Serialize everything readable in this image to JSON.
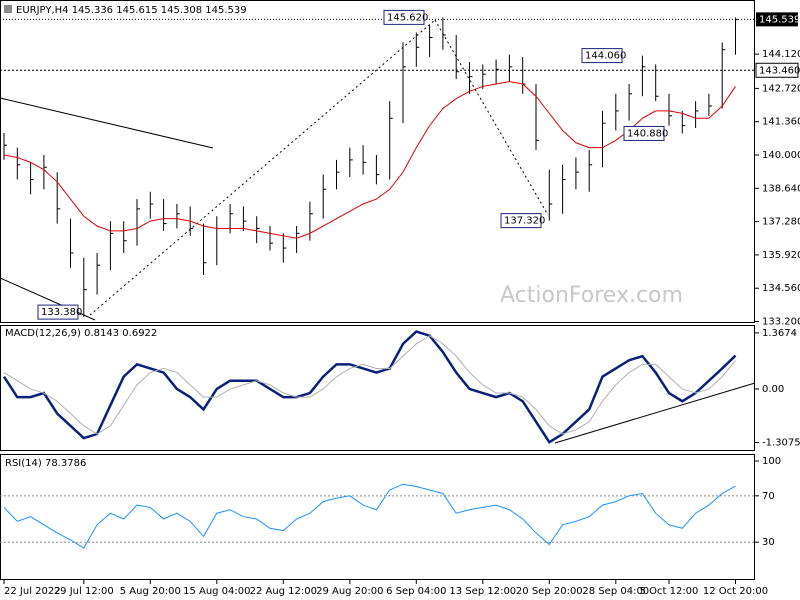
{
  "header": "EURJPY,H4  145.336 145.615 145.308 145.539",
  "watermark": "ActionForex.com",
  "chart_data": [
    {
      "type": "ohlc",
      "categories": [
        "22 Jul 2022",
        null,
        null,
        null,
        null,
        null,
        "29 Jul 12:00",
        null,
        null,
        null,
        null,
        "5 Aug 20:00",
        null,
        null,
        null,
        null,
        "15 Aug 04:00",
        null,
        null,
        null,
        null,
        "22 Aug 12:00",
        null,
        null,
        null,
        null,
        "29 Aug 20:00",
        null,
        null,
        null,
        null,
        "6 Sep 04:00",
        null,
        null,
        null,
        null,
        "13 Sep 12:00",
        null,
        null,
        null,
        null,
        "20 Sep 20:00",
        null,
        null,
        null,
        null,
        "28 Sep 04:00",
        null,
        null,
        null,
        "5 Oct 12:00",
        null,
        null,
        null,
        null,
        "12 Oct 20:00"
      ],
      "high": [
        140.9,
        140.3,
        139.7,
        140.0,
        139.3,
        137.4,
        135.8,
        136.0,
        137.3,
        137.3,
        138.2,
        138.5,
        138.2,
        138.0,
        137.9,
        137.2,
        137.5,
        138.0,
        137.9,
        137.5,
        137.1,
        136.8,
        137.1,
        138.1,
        139.2,
        139.8,
        140.3,
        140.4,
        140.0,
        142.2,
        144.6,
        145.0,
        145.3,
        145.62,
        144.9,
        143.8,
        143.7,
        143.9,
        144.1,
        144.0,
        142.9,
        139.4,
        139.6,
        139.9,
        140.2,
        141.8,
        142.5,
        142.9,
        144.06,
        143.7,
        142.5,
        141.8,
        142.2,
        142.5,
        144.6,
        145.615
      ],
      "low": [
        139.8,
        139.0,
        138.4,
        138.6,
        137.2,
        135.4,
        133.38,
        134.3,
        135.3,
        136.0,
        136.3,
        137.4,
        136.9,
        137.0,
        136.7,
        135.1,
        135.5,
        136.8,
        136.9,
        136.4,
        136.1,
        135.6,
        136.0,
        136.5,
        137.4,
        138.6,
        139.1,
        139.2,
        138.8,
        139.0,
        141.3,
        143.6,
        144.0,
        144.3,
        143.1,
        142.5,
        142.7,
        142.9,
        143.0,
        142.5,
        140.2,
        137.32,
        137.6,
        138.6,
        138.5,
        139.5,
        141.0,
        141.4,
        142.4,
        142.2,
        141.2,
        140.88,
        141.1,
        141.6,
        141.9,
        144.1
      ],
      "close": [
        140.4,
        139.6,
        139.0,
        139.5,
        137.8,
        136.0,
        134.5,
        135.5,
        136.8,
        136.5,
        137.8,
        138.0,
        137.2,
        137.6,
        137.0,
        135.6,
        137.0,
        137.6,
        137.3,
        137.0,
        136.4,
        136.2,
        136.8,
        137.6,
        138.6,
        139.3,
        139.8,
        139.7,
        139.2,
        141.5,
        143.6,
        144.4,
        144.8,
        144.9,
        143.4,
        143.2,
        143.3,
        143.5,
        143.6,
        142.9,
        140.6,
        138.0,
        139.0,
        139.3,
        139.6,
        141.3,
        141.8,
        142.5,
        143.6,
        142.4,
        141.6,
        141.2,
        141.8,
        142.0,
        144.3,
        145.539
      ],
      "bar_color": "#000000",
      "ma": {
        "color": "#e00000",
        "values": [
          140.0,
          139.9,
          139.7,
          139.4,
          138.9,
          138.2,
          137.5,
          137.1,
          136.9,
          136.9,
          137.0,
          137.3,
          137.4,
          137.4,
          137.3,
          137.1,
          137.0,
          137.0,
          137.0,
          136.9,
          136.8,
          136.7,
          136.6,
          136.8,
          137.1,
          137.4,
          137.7,
          138.0,
          138.2,
          138.6,
          139.3,
          140.3,
          141.2,
          141.9,
          142.3,
          142.6,
          142.8,
          142.9,
          143.0,
          142.9,
          142.4,
          141.7,
          141.0,
          140.5,
          140.3,
          140.3,
          140.6,
          141.0,
          141.5,
          141.8,
          141.8,
          141.7,
          141.5,
          141.5,
          142.0,
          142.8
        ]
      },
      "ylim": [
        133.18,
        146.33
      ],
      "yticks": [
        {
          "value": 133.2,
          "label": "133.200"
        },
        {
          "value": 134.56,
          "label": "134.560"
        },
        {
          "value": 135.92,
          "label": "135.920"
        },
        {
          "value": 137.28,
          "label": "137.280"
        },
        {
          "value": 138.64,
          "label": "138.640"
        },
        {
          "value": 140.0,
          "label": "140.000"
        },
        {
          "value": 141.36,
          "label": "141.360"
        },
        {
          "value": 142.72,
          "label": "142.720"
        },
        {
          "value": 144.12,
          "label": "144.120"
        }
      ],
      "current_price": {
        "value": 145.539,
        "label": "145.539"
      },
      "level": {
        "value": 143.46,
        "label": "143.460"
      },
      "annotations": [
        {
          "value": 145.62,
          "label": "145.620"
        },
        {
          "value": 144.06,
          "label": "144.060"
        },
        {
          "value": 140.88,
          "label": "140.880"
        },
        {
          "value": 137.32,
          "label": "137.320"
        },
        {
          "value": 133.38,
          "label": "133.380"
        }
      ]
    },
    {
      "type": "macd",
      "title": "MACD(12,26,9) 0.8143 0.6922",
      "series": [
        {
          "name": "MACD",
          "color": "#0a1f7a",
          "values": [
            0.3,
            -0.2,
            -0.2,
            -0.1,
            -0.6,
            -0.9,
            -1.2,
            -1.1,
            -0.4,
            0.3,
            0.6,
            0.5,
            0.4,
            0.0,
            -0.2,
            -0.5,
            0.0,
            0.2,
            0.2,
            0.2,
            0.0,
            -0.2,
            -0.2,
            -0.1,
            0.3,
            0.6,
            0.6,
            0.5,
            0.4,
            0.5,
            1.1,
            1.4,
            1.3,
            0.9,
            0.4,
            0.0,
            -0.1,
            -0.2,
            -0.1,
            -0.3,
            -0.8,
            -1.3,
            -1.1,
            -0.8,
            -0.5,
            0.3,
            0.5,
            0.7,
            0.8,
            0.4,
            -0.1,
            -0.3,
            -0.1,
            0.2,
            0.5,
            0.8143
          ]
        },
        {
          "name": "Signal",
          "color": "#b0b0b0",
          "values": [
            0.4,
            0.2,
            0.0,
            -0.1,
            -0.3,
            -0.6,
            -0.9,
            -1.1,
            -0.9,
            -0.4,
            0.1,
            0.4,
            0.5,
            0.4,
            0.1,
            -0.2,
            -0.2,
            0.0,
            0.1,
            0.2,
            0.1,
            -0.1,
            -0.2,
            -0.2,
            0.0,
            0.3,
            0.5,
            0.6,
            0.5,
            0.5,
            0.8,
            1.1,
            1.3,
            1.1,
            0.8,
            0.4,
            0.1,
            -0.1,
            -0.1,
            -0.2,
            -0.5,
            -0.9,
            -1.1,
            -1.0,
            -0.8,
            -0.3,
            0.1,
            0.4,
            0.6,
            0.6,
            0.3,
            0.0,
            -0.1,
            0.0,
            0.3,
            0.6922
          ]
        }
      ],
      "ylim": [
        -1.49,
        1.56
      ],
      "yticks": [
        {
          "value": -1.3075,
          "label": "-1.3075"
        },
        {
          "value": 0,
          "label": "0.00"
        },
        1.3674
      ]
    },
    {
      "type": "rsi",
      "title": "RSI(14) 78.3786",
      "series": [
        {
          "name": "RSI",
          "color": "#1e90ff",
          "values": [
            60,
            48,
            52,
            45,
            38,
            32,
            25,
            45,
            55,
            50,
            62,
            60,
            50,
            55,
            48,
            35,
            55,
            58,
            52,
            50,
            42,
            40,
            50,
            55,
            65,
            68,
            70,
            62,
            58,
            75,
            80,
            78,
            75,
            72,
            55,
            58,
            60,
            62,
            58,
            50,
            38,
            28,
            45,
            48,
            52,
            62,
            65,
            70,
            72,
            55,
            45,
            42,
            55,
            62,
            72,
            78.3786
          ]
        }
      ],
      "ylim": [
        -2.6,
        105.2
      ],
      "yticks": [
        30,
        70,
        100
      ],
      "levels": [
        30,
        70
      ]
    }
  ]
}
